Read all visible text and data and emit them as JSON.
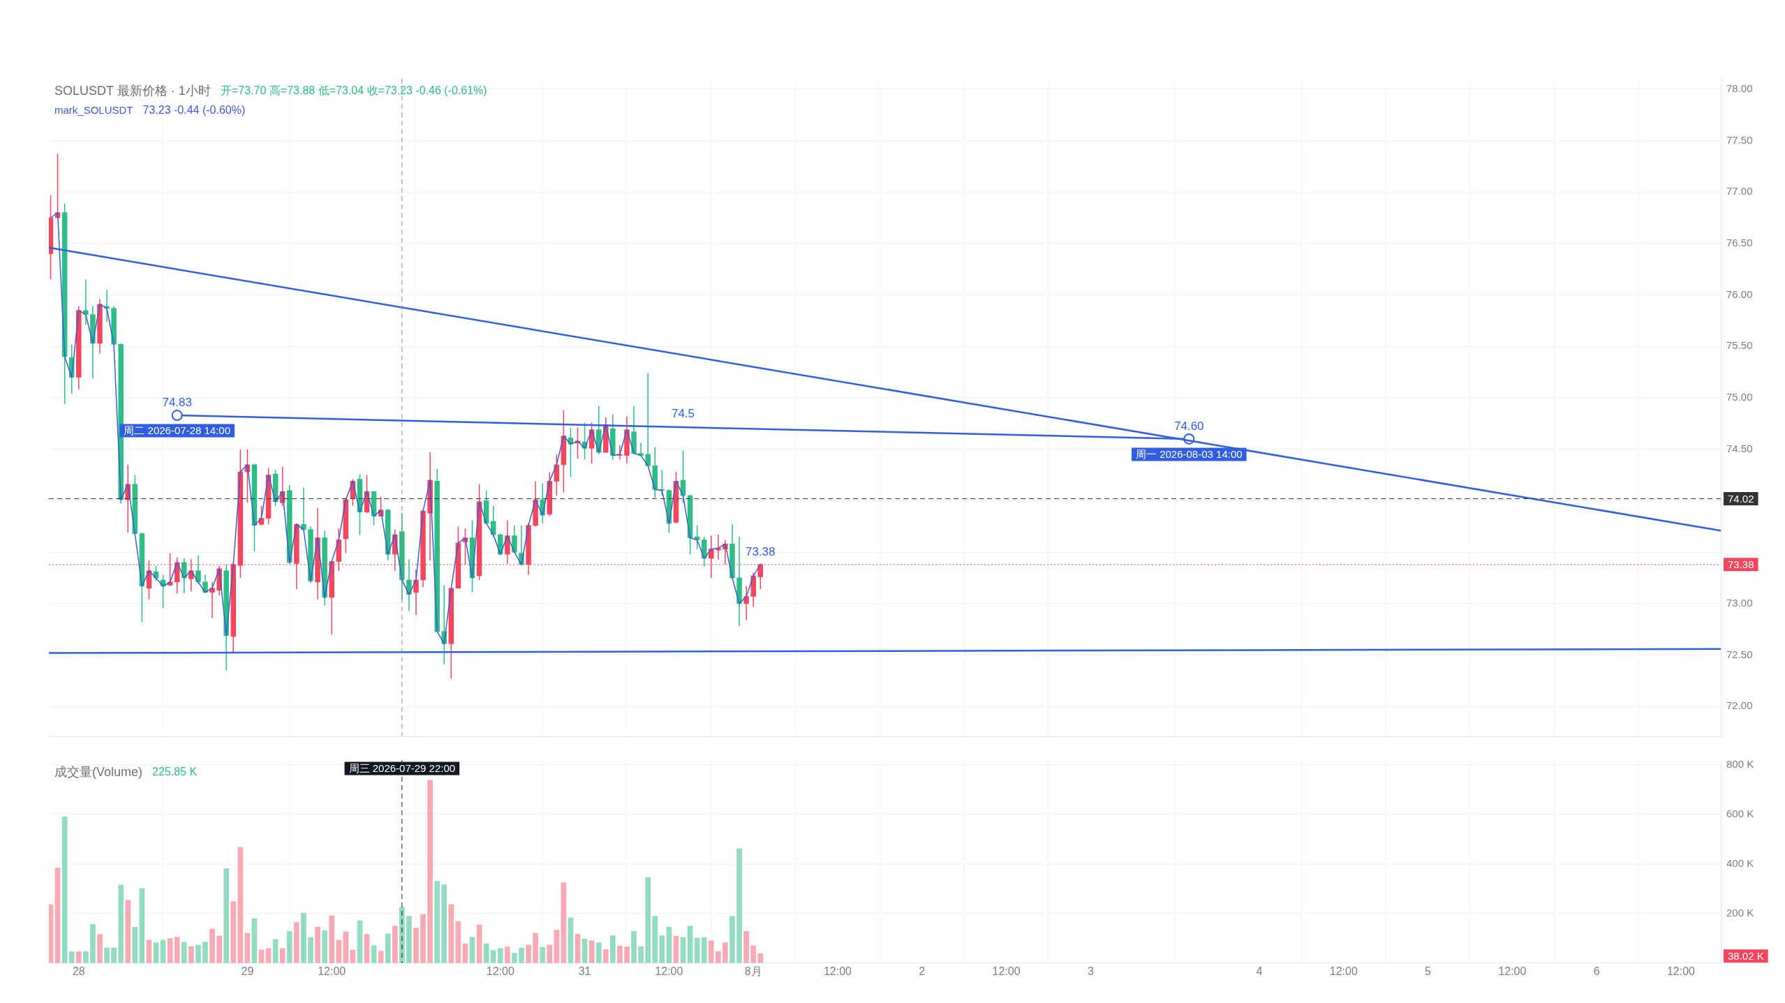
{
  "chart_data": [
    {
      "type": "candlestick",
      "title": "SOLUSDT 最新价格 · 1小时",
      "x": [
        "2026-07-27T20:00",
        "2026-07-27T21:00",
        "2026-07-27T22:00",
        "2026-07-27T23:00",
        "2026-07-28T00:00",
        "2026-07-28T01:00",
        "2026-07-28T02:00",
        "2026-07-28T03:00",
        "2026-07-28T04:00",
        "2026-07-28T05:00",
        "2026-07-28T06:00",
        "2026-07-28T07:00",
        "2026-07-28T08:00",
        "2026-07-28T09:00",
        "2026-07-28T10:00",
        "2026-07-28T11:00",
        "2026-07-28T12:00",
        "2026-07-28T13:00",
        "2026-07-28T14:00",
        "2026-07-28T15:00",
        "2026-07-28T16:00",
        "2026-07-28T17:00",
        "2026-07-28T18:00",
        "2026-07-28T19:00",
        "2026-07-28T20:00",
        "2026-07-28T21:00",
        "2026-07-28T22:00",
        "2026-07-28T23:00",
        "2026-07-29T00:00",
        "2026-07-29T01:00",
        "2026-07-29T02:00",
        "2026-07-29T03:00",
        "2026-07-29T04:00",
        "2026-07-29T05:00",
        "2026-07-29T06:00",
        "2026-07-29T07:00",
        "2026-07-29T08:00",
        "2026-07-29T09:00",
        "2026-07-29T10:00",
        "2026-07-29T11:00",
        "2026-07-29T12:00",
        "2026-07-29T13:00",
        "2026-07-29T14:00",
        "2026-07-29T15:00",
        "2026-07-29T16:00",
        "2026-07-29T17:00",
        "2026-07-29T18:00",
        "2026-07-29T19:00",
        "2026-07-29T20:00",
        "2026-07-29T21:00",
        "2026-07-29T22:00",
        "2026-07-29T23:00",
        "2026-07-30T00:00",
        "2026-07-30T01:00",
        "2026-07-30T02:00",
        "2026-07-30T03:00",
        "2026-07-30T04:00",
        "2026-07-30T05:00",
        "2026-07-30T06:00",
        "2026-07-30T07:00",
        "2026-07-30T08:00",
        "2026-07-30T09:00",
        "2026-07-30T10:00",
        "2026-07-30T11:00",
        "2026-07-30T12:00",
        "2026-07-30T13:00",
        "2026-07-30T14:00",
        "2026-07-30T15:00",
        "2026-07-30T16:00",
        "2026-07-30T17:00",
        "2026-07-30T18:00",
        "2026-07-30T19:00",
        "2026-07-30T20:00",
        "2026-07-30T21:00",
        "2026-07-30T22:00",
        "2026-07-30T23:00",
        "2026-07-31T00:00",
        "2026-07-31T01:00",
        "2026-07-31T02:00",
        "2026-07-31T03:00",
        "2026-07-31T04:00",
        "2026-07-31T05:00",
        "2026-07-31T06:00",
        "2026-07-31T07:00",
        "2026-07-31T08:00",
        "2026-07-31T09:00",
        "2026-07-31T10:00",
        "2026-07-31T11:00",
        "2026-07-31T12:00",
        "2026-07-31T13:00",
        "2026-07-31T14:00",
        "2026-07-31T15:00",
        "2026-07-31T16:00",
        "2026-07-31T17:00",
        "2026-07-31T18:00",
        "2026-07-31T19:00",
        "2026-07-31T20:00",
        "2026-07-31T21:00",
        "2026-07-31T22:00",
        "2026-07-31T23:00",
        "2026-08-01T00:00",
        "2026-08-01T01:00"
      ],
      "ohlc": [
        [
          76.4,
          76.97,
          76.15,
          76.75
        ],
        [
          76.75,
          77.37,
          76.75,
          76.8
        ],
        [
          76.8,
          76.89,
          74.94,
          75.4
        ],
        [
          75.39,
          75.52,
          75.04,
          75.2
        ],
        [
          75.2,
          75.89,
          75.08,
          75.85
        ],
        [
          75.85,
          76.15,
          75.71,
          75.81
        ],
        [
          75.81,
          75.89,
          75.19,
          75.53
        ],
        [
          75.53,
          75.96,
          75.43,
          75.91
        ],
        [
          75.89,
          76.05,
          75.74,
          75.87
        ],
        [
          75.87,
          75.89,
          75.52,
          75.52
        ],
        [
          75.52,
          75.53,
          73.97,
          74.01
        ],
        [
          74.01,
          74.35,
          73.69,
          74.16
        ],
        [
          74.16,
          74.25,
          73.67,
          73.68
        ],
        [
          73.68,
          73.69,
          72.82,
          73.17
        ],
        [
          73.15,
          73.42,
          73.04,
          73.32
        ],
        [
          73.31,
          73.37,
          73.22,
          73.25
        ],
        [
          73.23,
          73.28,
          72.96,
          73.17
        ],
        [
          73.18,
          73.49,
          73.17,
          73.21
        ],
        [
          73.21,
          73.45,
          73.1,
          73.4
        ],
        [
          73.4,
          73.44,
          73.1,
          73.25
        ],
        [
          73.24,
          73.43,
          73.12,
          73.32
        ],
        [
          73.32,
          73.47,
          73.19,
          73.21
        ],
        [
          73.21,
          73.28,
          73.1,
          73.11
        ],
        [
          73.11,
          73.21,
          72.86,
          73.15
        ],
        [
          73.13,
          73.37,
          73.08,
          73.34
        ],
        [
          73.32,
          73.38,
          72.35,
          72.69
        ],
        [
          72.68,
          73.4,
          72.53,
          73.38
        ],
        [
          73.37,
          74.5,
          73.25,
          74.28
        ],
        [
          74.28,
          74.5,
          73.98,
          74.35
        ],
        [
          74.35,
          74.36,
          73.51,
          73.76
        ],
        [
          73.77,
          73.95,
          73.76,
          73.83
        ],
        [
          73.83,
          74.32,
          73.77,
          74.25
        ],
        [
          74.26,
          74.3,
          73.95,
          73.99
        ],
        [
          73.98,
          74.33,
          73.95,
          74.09
        ],
        [
          74.1,
          74.15,
          73.38,
          73.4
        ],
        [
          73.39,
          73.78,
          73.14,
          73.77
        ],
        [
          73.77,
          74.13,
          73.71,
          73.72
        ],
        [
          73.72,
          73.75,
          73.2,
          73.22
        ],
        [
          73.21,
          73.93,
          73.04,
          73.64
        ],
        [
          73.64,
          73.71,
          72.98,
          73.06
        ],
        [
          73.06,
          73.42,
          72.7,
          73.41
        ],
        [
          73.41,
          73.73,
          73.32,
          73.62
        ],
        [
          73.63,
          74.02,
          73.49,
          74.01
        ],
        [
          74.02,
          74.21,
          73.95,
          74.19
        ],
        [
          74.21,
          74.26,
          73.67,
          73.89
        ],
        [
          73.89,
          74.25,
          73.88,
          74.09
        ],
        [
          74.09,
          74.09,
          73.76,
          73.85
        ],
        [
          73.85,
          74.04,
          73.85,
          73.91
        ],
        [
          73.91,
          73.92,
          73.42,
          73.48
        ],
        [
          73.48,
          73.72,
          73.32,
          73.67
        ],
        [
          73.7,
          73.88,
          73.04,
          73.23
        ],
        [
          73.23,
          73.43,
          72.93,
          73.09
        ],
        [
          73.11,
          73.33,
          72.89,
          73.23
        ],
        [
          73.23,
          73.91,
          73.16,
          73.9
        ],
        [
          73.88,
          74.47,
          73.42,
          74.2
        ],
        [
          74.19,
          74.31,
          72.72,
          72.73
        ],
        [
          72.73,
          73.18,
          72.41,
          72.61
        ],
        [
          72.61,
          73.15,
          72.27,
          73.15
        ],
        [
          73.15,
          73.75,
          73.15,
          73.59
        ],
        [
          73.6,
          73.73,
          73.38,
          73.64
        ],
        [
          73.64,
          73.81,
          73.11,
          73.25
        ],
        [
          73.27,
          74.16,
          73.23,
          73.99
        ],
        [
          74.0,
          74.1,
          73.77,
          73.78
        ],
        [
          73.8,
          73.95,
          73.65,
          73.67
        ],
        [
          73.67,
          73.68,
          73.47,
          73.48
        ],
        [
          73.48,
          73.81,
          73.39,
          73.66
        ],
        [
          73.66,
          73.76,
          73.49,
          73.5
        ],
        [
          73.49,
          73.76,
          73.37,
          73.38
        ],
        [
          73.38,
          73.78,
          73.28,
          73.76
        ],
        [
          73.76,
          74.19,
          73.75,
          74.01
        ],
        [
          74.01,
          74.17,
          73.78,
          73.86
        ],
        [
          73.87,
          74.28,
          73.85,
          74.19
        ],
        [
          74.19,
          74.45,
          74.05,
          74.35
        ],
        [
          74.35,
          74.88,
          74.08,
          74.63
        ],
        [
          74.61,
          74.71,
          74.23,
          74.55
        ],
        [
          74.56,
          74.71,
          74.41,
          74.58
        ],
        [
          74.57,
          74.76,
          74.4,
          74.51
        ],
        [
          74.51,
          74.76,
          74.36,
          74.69
        ],
        [
          74.69,
          74.92,
          74.45,
          74.47
        ],
        [
          74.47,
          74.81,
          74.47,
          74.74
        ],
        [
          74.7,
          74.84,
          74.4,
          74.44
        ],
        [
          74.44,
          74.54,
          74.4,
          74.45
        ],
        [
          74.44,
          74.82,
          74.36,
          74.69
        ],
        [
          74.67,
          74.92,
          74.45,
          74.46
        ],
        [
          74.46,
          74.56,
          74.43,
          74.44
        ],
        [
          74.45,
          75.24,
          74.34,
          74.34
        ],
        [
          74.34,
          74.52,
          74.03,
          74.11
        ],
        [
          74.11,
          74.3,
          74.05,
          74.1
        ],
        [
          74.1,
          74.11,
          73.69,
          73.78
        ],
        [
          73.79,
          74.28,
          73.78,
          74.19
        ],
        [
          74.2,
          74.49,
          73.98,
          74.05
        ],
        [
          74.05,
          74.06,
          73.48,
          73.64
        ],
        [
          73.65,
          73.76,
          73.53,
          73.62
        ],
        [
          73.62,
          73.65,
          73.36,
          73.44
        ],
        [
          73.44,
          73.66,
          73.25,
          73.53
        ],
        [
          73.52,
          73.67,
          73.43,
          73.54
        ],
        [
          73.53,
          73.62,
          73.38,
          73.58
        ],
        [
          73.58,
          73.77,
          73.24,
          73.25
        ],
        [
          73.25,
          73.65,
          72.78,
          73.0
        ],
        [
          73.0,
          73.17,
          72.84,
          73.07
        ],
        [
          73.07,
          73.3,
          72.97,
          73.27
        ],
        [
          73.26,
          73.39,
          73.14,
          73.38
        ]
      ],
      "colors": [
        "#f6465d",
        "#f6465d",
        "#2ebd85",
        "#2ebd85",
        "#f6465d",
        "#2ebd85",
        "#2ebd85",
        "#f6465d",
        "#2ebd85",
        "#2ebd85",
        "#2ebd85",
        "#f6465d",
        "#2ebd85",
        "#2ebd85",
        "#f6465d",
        "#2ebd85",
        "#2ebd85",
        "#f6465d",
        "#f6465d",
        "#2ebd85",
        "#f6465d",
        "#2ebd85",
        "#2ebd85",
        "#f6465d",
        "#f6465d",
        "#2ebd85",
        "#f6465d",
        "#f6465d",
        "#f6465d",
        "#2ebd85",
        "#f6465d",
        "#f6465d",
        "#2ebd85",
        "#f6465d",
        "#2ebd85",
        "#f6465d",
        "#2ebd85",
        "#2ebd85",
        "#f6465d",
        "#2ebd85",
        "#f6465d",
        "#f6465d",
        "#f6465d",
        "#f6465d",
        "#2ebd85",
        "#f6465d",
        "#2ebd85",
        "#f6465d",
        "#2ebd85",
        "#f6465d",
        "#2ebd85",
        "#2ebd85",
        "#f6465d",
        "#f6465d",
        "#f6465d",
        "#2ebd85",
        "#2ebd85",
        "#f6465d",
        "#f6465d",
        "#f6465d",
        "#2ebd85",
        "#f6465d",
        "#2ebd85",
        "#2ebd85",
        "#2ebd85",
        "#f6465d",
        "#2ebd85",
        "#2ebd85",
        "#f6465d",
        "#f6465d",
        "#2ebd85",
        "#f6465d",
        "#f6465d",
        "#f6465d",
        "#2ebd85",
        "#f6465d",
        "#2ebd85",
        "#f6465d",
        "#2ebd85",
        "#f6465d",
        "#2ebd85",
        "#f6465d",
        "#f6465d",
        "#2ebd85",
        "#2ebd85",
        "#2ebd85",
        "#2ebd85",
        "#2ebd85",
        "#2ebd85",
        "#f6465d",
        "#2ebd85",
        "#2ebd85",
        "#2ebd85",
        "#2ebd85",
        "#f6465d",
        "#f6465d",
        "#f6465d",
        "#2ebd85",
        "#2ebd85",
        "#f6465d",
        "#f6465d",
        "#f6465d"
      ],
      "series": [
        {
          "type": "line",
          "name": "mark_SOLUSDT",
          "color": "#3b5bdb",
          "marker": "none",
          "values": [
            76.75,
            76.8,
            75.4,
            75.2,
            75.85,
            75.81,
            75.53,
            75.91,
            75.87,
            75.52,
            74.01,
            74.16,
            73.68,
            73.17,
            73.32,
            73.25,
            73.17,
            73.21,
            73.4,
            73.25,
            73.32,
            73.21,
            73.11,
            73.15,
            73.34,
            72.69,
            73.38,
            74.28,
            74.35,
            73.76,
            73.83,
            74.25,
            73.99,
            74.09,
            73.4,
            73.77,
            73.72,
            73.22,
            73.64,
            73.06,
            73.41,
            73.62,
            74.01,
            74.19,
            73.89,
            74.09,
            73.85,
            73.91,
            73.48,
            73.67,
            73.23,
            73.09,
            73.23,
            73.9,
            74.2,
            72.73,
            72.61,
            73.15,
            73.59,
            73.64,
            73.25,
            73.99,
            73.78,
            73.67,
            73.48,
            73.66,
            73.5,
            73.38,
            73.76,
            74.01,
            73.86,
            74.19,
            74.35,
            74.63,
            74.55,
            74.58,
            74.51,
            74.69,
            74.47,
            74.74,
            74.44,
            74.45,
            74.69,
            74.46,
            74.44,
            74.34,
            74.11,
            74.1,
            73.78,
            74.19,
            74.05,
            73.64,
            73.62,
            73.44,
            73.53,
            73.54,
            73.58,
            73.25,
            73.0,
            73.07,
            73.27,
            73.38
          ]
        },
        {
          "type": "line",
          "color": "#2f5fe0",
          "marker": "none",
          "x": [
            "2026-07-27T19:45",
            "2026-08-06T17:40"
          ],
          "values": [
            76.46,
            73.71
          ]
        },
        {
          "type": "line",
          "color": "#2f5fe0",
          "marker": "circle",
          "x": [
            "2026-07-28T14:00",
            "2026-08-03T14:00"
          ],
          "values": [
            74.83,
            74.6
          ]
        },
        {
          "type": "line",
          "color": "#2f5fe0",
          "marker": "none",
          "x": [
            "2026-07-27T19:45",
            "2026-08-06T17:40"
          ],
          "values": [
            72.52,
            72.56
          ]
        }
      ],
      "annotations": [
        "开=73.70 高=73.88 低=73.04 收=73.23 -0.46 (-0.61%)",
        "73.23 -0.44 (-0.60%)",
        {
          "text": "74.5",
          "x": "2026-07-31T14:00",
          "y": 74.72
        },
        {
          "text": "74.83",
          "x": "2026-07-28T14:00",
          "y": 74.83
        },
        {
          "text": "周二 2026-07-28 14:00",
          "x": "2026-07-28T14:00",
          "y": 74.83
        },
        {
          "text": "74.60",
          "x": "2026-08-03T14:00",
          "y": 74.6
        },
        {
          "text": "周一 2026-08-03 14:00",
          "x": "2026-08-03T14:00",
          "y": 74.6
        },
        {
          "text": "73.38",
          "x": "2026-08-01T01:00",
          "y": 73.38
        }
      ],
      "ref_lines": [
        {
          "axis": "x",
          "value": "2026-07-29T22:00",
          "color": "#888888",
          "line_style": "dashed"
        },
        {
          "axis": "y",
          "value": 74.02,
          "label": "74.02",
          "color": "#333333",
          "line_style": "dashed"
        },
        {
          "axis": "y",
          "value": 73.38,
          "label": "73.38",
          "color": "#f6465d",
          "line_style": "dotted"
        }
      ],
      "xlim": [
        "2026-07-27T19:45",
        "2026-08-06T17:40"
      ],
      "xticks": [
        {
          "value": "2026-07-28T00:00",
          "label": null
        },
        {
          "value": "2026-07-29T00:00",
          "label": null
        },
        {
          "value": "2026-07-29T12:00",
          "label": null
        },
        {
          "value": "2026-07-30T12:00",
          "label": null
        },
        {
          "value": "2026-07-31T00:00",
          "label": null
        },
        {
          "value": "2026-07-31T12:00",
          "label": null
        },
        {
          "value": "2026-08-01T00:00",
          "label": null
        },
        {
          "value": "2026-08-01T12:00",
          "label": null
        },
        {
          "value": "2026-08-02T00:00",
          "label": null
        },
        {
          "value": "2026-08-02T12:00",
          "label": null
        },
        {
          "value": "2026-08-03T00:00",
          "label": null
        },
        {
          "value": "2026-08-04T00:00",
          "label": null
        },
        {
          "value": "2026-08-04T12:00",
          "label": null
        },
        {
          "value": "2026-08-05T00:00",
          "label": null
        },
        {
          "value": "2026-08-05T12:00",
          "label": null
        },
        {
          "value": "2026-08-06T00:00",
          "label": null
        },
        {
          "value": "2026-08-06T12:00",
          "label": null
        }
      ],
      "ylim": [
        71.71,
        78.1
      ],
      "yticks": [
        {
          "value": 72,
          "label": "72.00"
        },
        {
          "value": 72.5,
          "label": "72.50"
        },
        {
          "value": 73,
          "label": "73.00"
        },
        {
          "value": 73.5,
          "label": null
        },
        {
          "value": 74,
          "label": null
        },
        {
          "value": 74.5,
          "label": "74.50"
        },
        {
          "value": 75,
          "label": "75.00"
        },
        {
          "value": 75.5,
          "label": "75.50"
        },
        {
          "value": 76,
          "label": "76.00"
        },
        {
          "value": 76.5,
          "label": "76.50"
        },
        {
          "value": 77,
          "label": "77.00"
        },
        {
          "value": 77.5,
          "label": "77.50"
        },
        {
          "value": 78,
          "label": "78.00"
        }
      ],
      "tick_labels": "y",
      "grid": true
    },
    {
      "type": "bar",
      "title": "成交量(Volume)",
      "x": [
        "2026-07-27T20:00",
        "2026-07-27T21:00",
        "2026-07-27T22:00",
        "2026-07-27T23:00",
        "2026-07-28T00:00",
        "2026-07-28T01:00",
        "2026-07-28T02:00",
        "2026-07-28T03:00",
        "2026-07-28T04:00",
        "2026-07-28T05:00",
        "2026-07-28T06:00",
        "2026-07-28T07:00",
        "2026-07-28T08:00",
        "2026-07-28T09:00",
        "2026-07-28T10:00",
        "2026-07-28T11:00",
        "2026-07-28T12:00",
        "2026-07-28T13:00",
        "2026-07-28T14:00",
        "2026-07-28T15:00",
        "2026-07-28T16:00",
        "2026-07-28T17:00",
        "2026-07-28T18:00",
        "2026-07-28T19:00",
        "2026-07-28T20:00",
        "2026-07-28T21:00",
        "2026-07-28T22:00",
        "2026-07-28T23:00",
        "2026-07-29T00:00",
        "2026-07-29T01:00",
        "2026-07-29T02:00",
        "2026-07-29T03:00",
        "2026-07-29T04:00",
        "2026-07-29T05:00",
        "2026-07-29T06:00",
        "2026-07-29T07:00",
        "2026-07-29T08:00",
        "2026-07-29T09:00",
        "2026-07-29T10:00",
        "2026-07-29T11:00",
        "2026-07-29T12:00",
        "2026-07-29T13:00",
        "2026-07-29T14:00",
        "2026-07-29T15:00",
        "2026-07-29T16:00",
        "2026-07-29T17:00",
        "2026-07-29T18:00",
        "2026-07-29T19:00",
        "2026-07-29T20:00",
        "2026-07-29T21:00",
        "2026-07-29T22:00",
        "2026-07-29T23:00",
        "2026-07-30T00:00",
        "2026-07-30T01:00",
        "2026-07-30T02:00",
        "2026-07-30T03:00",
        "2026-07-30T04:00",
        "2026-07-30T05:00",
        "2026-07-30T06:00",
        "2026-07-30T07:00",
        "2026-07-30T08:00",
        "2026-07-30T09:00",
        "2026-07-30T10:00",
        "2026-07-30T11:00",
        "2026-07-30T12:00",
        "2026-07-30T13:00",
        "2026-07-30T14:00",
        "2026-07-30T15:00",
        "2026-07-30T16:00",
        "2026-07-30T17:00",
        "2026-07-30T18:00",
        "2026-07-30T19:00",
        "2026-07-30T20:00",
        "2026-07-30T21:00",
        "2026-07-30T22:00",
        "2026-07-30T23:00",
        "2026-07-31T00:00",
        "2026-07-31T01:00",
        "2026-07-31T02:00",
        "2026-07-31T03:00",
        "2026-07-31T04:00",
        "2026-07-31T05:00",
        "2026-07-31T06:00",
        "2026-07-31T07:00",
        "2026-07-31T08:00",
        "2026-07-31T09:00",
        "2026-07-31T10:00",
        "2026-07-31T11:00",
        "2026-07-31T12:00",
        "2026-07-31T13:00",
        "2026-07-31T14:00",
        "2026-07-31T15:00",
        "2026-07-31T16:00",
        "2026-07-31T17:00",
        "2026-07-31T18:00",
        "2026-07-31T19:00",
        "2026-07-31T20:00",
        "2026-07-31T21:00",
        "2026-07-31T22:00",
        "2026-07-31T23:00",
        "2026-08-01T00:00",
        "2026-08-01T01:00"
      ],
      "values": [
        236,
        383,
        589,
        46,
        46,
        46,
        156,
        116,
        61,
        61,
        314,
        253,
        145,
        301,
        93,
        82,
        93,
        99,
        105,
        84,
        67,
        72,
        84,
        137,
        109,
        381,
        248,
        467,
        120,
        179,
        53,
        59,
        95,
        59,
        128,
        164,
        202,
        103,
        145,
        131,
        191,
        93,
        126,
        53,
        171,
        116,
        70,
        48,
        118,
        150,
        226,
        189,
        141,
        196,
        737,
        330,
        316,
        236,
        168,
        78,
        105,
        154,
        78,
        51,
        59,
        65,
        40,
        61,
        72,
        120,
        63,
        72,
        133,
        324,
        183,
        116,
        97,
        90,
        82,
        55,
        110,
        69,
        65,
        128,
        67,
        345,
        189,
        110,
        145,
        109,
        103,
        150,
        101,
        103,
        90,
        46,
        82,
        189,
        461,
        128,
        70,
        38
      ],
      "colors": [
        "#f7a9b4",
        "#f7a9b4",
        "#93dbc1",
        "#93dbc1",
        "#f7a9b4",
        "#93dbc1",
        "#93dbc1",
        "#f7a9b4",
        "#93dbc1",
        "#93dbc1",
        "#93dbc1",
        "#f7a9b4",
        "#93dbc1",
        "#93dbc1",
        "#f7a9b4",
        "#93dbc1",
        "#93dbc1",
        "#f7a9b4",
        "#f7a9b4",
        "#93dbc1",
        "#f7a9b4",
        "#93dbc1",
        "#93dbc1",
        "#f7a9b4",
        "#f7a9b4",
        "#93dbc1",
        "#f7a9b4",
        "#f7a9b4",
        "#f7a9b4",
        "#93dbc1",
        "#f7a9b4",
        "#f7a9b4",
        "#93dbc1",
        "#f7a9b4",
        "#93dbc1",
        "#f7a9b4",
        "#93dbc1",
        "#93dbc1",
        "#f7a9b4",
        "#93dbc1",
        "#f7a9b4",
        "#f7a9b4",
        "#f7a9b4",
        "#f7a9b4",
        "#93dbc1",
        "#f7a9b4",
        "#93dbc1",
        "#f7a9b4",
        "#93dbc1",
        "#f7a9b4",
        "#93dbc1",
        "#93dbc1",
        "#f7a9b4",
        "#f7a9b4",
        "#f7a9b4",
        "#93dbc1",
        "#93dbc1",
        "#f7a9b4",
        "#f7a9b4",
        "#f7a9b4",
        "#93dbc1",
        "#f7a9b4",
        "#93dbc1",
        "#93dbc1",
        "#93dbc1",
        "#f7a9b4",
        "#93dbc1",
        "#93dbc1",
        "#f7a9b4",
        "#f7a9b4",
        "#93dbc1",
        "#f7a9b4",
        "#f7a9b4",
        "#f7a9b4",
        "#93dbc1",
        "#f7a9b4",
        "#93dbc1",
        "#f7a9b4",
        "#93dbc1",
        "#f7a9b4",
        "#93dbc1",
        "#f7a9b4",
        "#f7a9b4",
        "#93dbc1",
        "#93dbc1",
        "#93dbc1",
        "#93dbc1",
        "#93dbc1",
        "#93dbc1",
        "#f7a9b4",
        "#93dbc1",
        "#93dbc1",
        "#93dbc1",
        "#93dbc1",
        "#f7a9b4",
        "#f7a9b4",
        "#f7a9b4",
        "#93dbc1",
        "#93dbc1",
        "#f7a9b4",
        "#f7a9b4",
        "#f7a9b4"
      ],
      "annotations": [
        "225.85 K",
        "38.02 K"
      ],
      "ref_lines": [
        {
          "axis": "x",
          "value": "2026-07-29T22:00",
          "label": "周三 2026-07-29 22:00",
          "color": "#131722",
          "line_style": "dashed"
        }
      ],
      "xlim": [
        "2026-07-27T19:45",
        "2026-08-06T17:40"
      ],
      "xticks": [
        {
          "value": "2026-07-28T00:00",
          "label": "28"
        },
        {
          "value": "2026-07-29T00:00",
          "label": "29"
        },
        {
          "value": "2026-07-29T12:00",
          "label": "12:00"
        },
        {
          "value": "2026-07-30T12:00",
          "label": "12:00"
        },
        {
          "value": "2026-07-31T00:00",
          "label": "31"
        },
        {
          "value": "2026-07-31T12:00",
          "label": "12:00"
        },
        {
          "value": "2026-08-01T00:00",
          "label": "8月"
        },
        {
          "value": "2026-08-01T12:00",
          "label": "12:00"
        },
        {
          "value": "2026-08-02T00:00",
          "label": "2"
        },
        {
          "value": "2026-08-02T12:00",
          "label": "12:00"
        },
        {
          "value": "2026-08-03T00:00",
          "label": "3"
        },
        {
          "value": "2026-08-04T00:00",
          "label": "4"
        },
        {
          "value": "2026-08-04T12:00",
          "label": "12:00"
        },
        {
          "value": "2026-08-05T00:00",
          "label": "5"
        },
        {
          "value": "2026-08-05T12:00",
          "label": "12:00"
        },
        {
          "value": "2026-08-06T00:00",
          "label": "6"
        },
        {
          "value": "2026-08-06T12:00",
          "label": "12:00"
        }
      ],
      "ylim": [
        0,
        818
      ],
      "yticks": [
        {
          "value": 200,
          "label": "200 K"
        },
        {
          "value": 400,
          "label": "400 K"
        },
        {
          "value": 600,
          "label": "600 K"
        },
        {
          "value": 800,
          "label": "800 K"
        }
      ],
      "grid": true
    }
  ]
}
